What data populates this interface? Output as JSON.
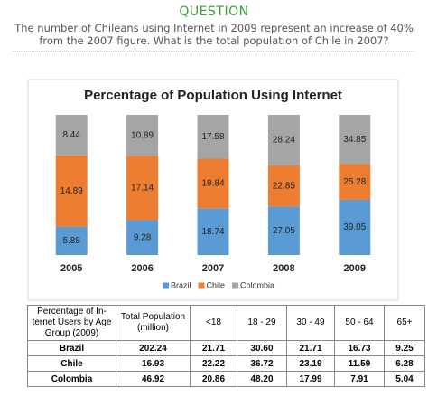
{
  "question": {
    "heading": "QUESTION",
    "text": "The number of Chileans using Internet in 2009 represent an increase of 40% from the 2007 figure. What is the total population of Chile in 2007?"
  },
  "chart_data": {
    "type": "bar",
    "stacking": "percent",
    "title": "Percentage of Population Using Internet",
    "categories": [
      "2005",
      "2006",
      "2007",
      "2008",
      "2009"
    ],
    "series": [
      {
        "name": "Brazil",
        "color": "#5b9bd5",
        "values": [
          5.88,
          9.28,
          18.74,
          27.05,
          39.05
        ]
      },
      {
        "name": "Chile",
        "color": "#ed7d31",
        "values": [
          14.89,
          17.14,
          19.84,
          22.85,
          25.28
        ]
      },
      {
        "name": "Colombia",
        "color": "#a5a5a5",
        "values": [
          8.44,
          10.89,
          17.58,
          28.24,
          34.85
        ]
      }
    ],
    "legend": "bottom"
  },
  "table": {
    "header": [
      "Percentage of In-ternet Users by Age Group (2009)",
      "Total Population (million)",
      "<18",
      "18 - 29",
      "30 - 49",
      "50 - 64",
      "65+"
    ],
    "rows": [
      [
        "Brazil",
        "202.24",
        "21.71",
        "30.60",
        "21.71",
        "16.73",
        "9.25"
      ],
      [
        "Chile",
        "16.93",
        "22.22",
        "36.72",
        "23.19",
        "11.59",
        "6.28"
      ],
      [
        "Colombia",
        "46.92",
        "20.86",
        "48.20",
        "17.99",
        "7.91",
        "5.04"
      ]
    ]
  }
}
